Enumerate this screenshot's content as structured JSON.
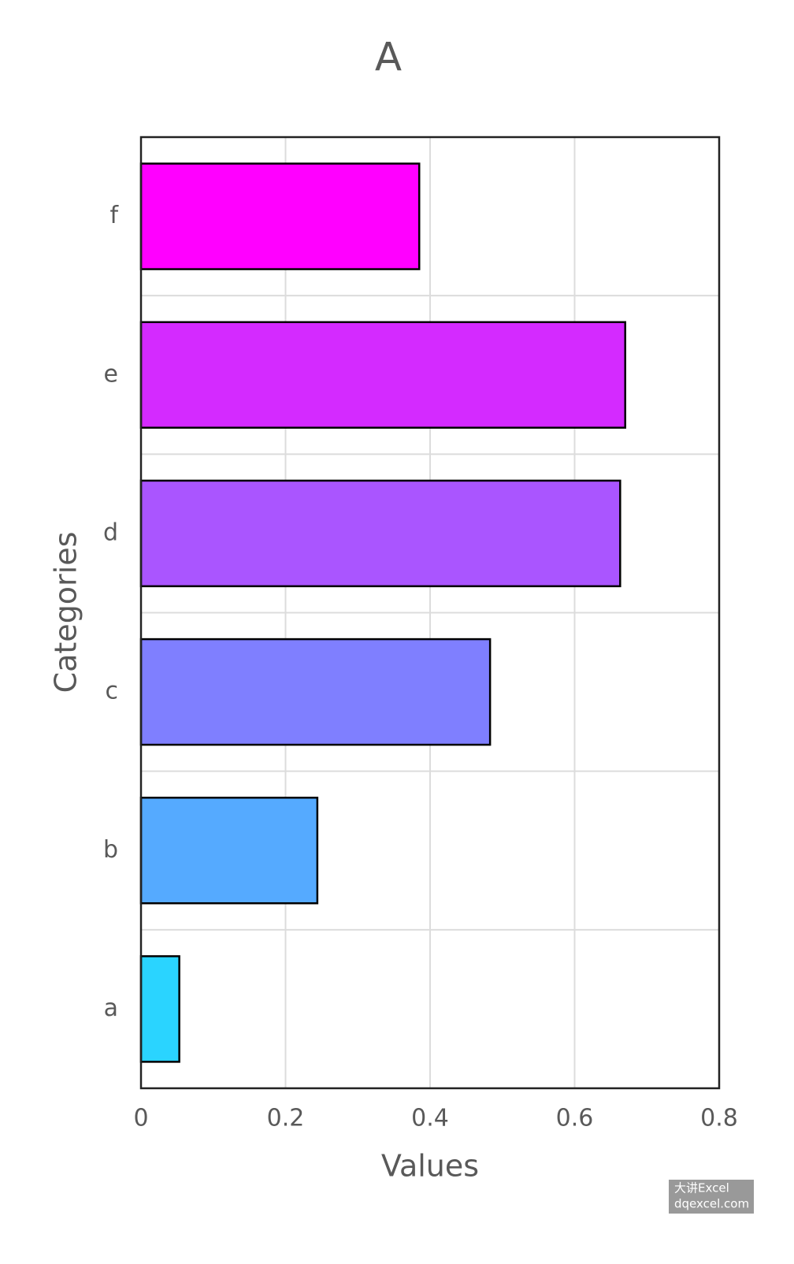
{
  "chart_data": {
    "type": "barh",
    "title": "A",
    "x_label": "Values",
    "y_label": "Categories",
    "categories": [
      "a",
      "b",
      "c",
      "d",
      "e",
      "f"
    ],
    "values": [
      0.053,
      0.244,
      0.483,
      0.663,
      0.67,
      0.385
    ],
    "colors": [
      "#2ad4ff",
      "#55aaff",
      "#7f7fff",
      "#aa55ff",
      "#d42aff",
      "#ff00ff"
    ],
    "xlim": [
      0,
      0.8
    ],
    "xticks": [
      0,
      0.2,
      0.4,
      0.6,
      0.8
    ],
    "grid": true
  },
  "watermark": {
    "line1": "大讲Excel",
    "line2": "dqexcel.com"
  }
}
